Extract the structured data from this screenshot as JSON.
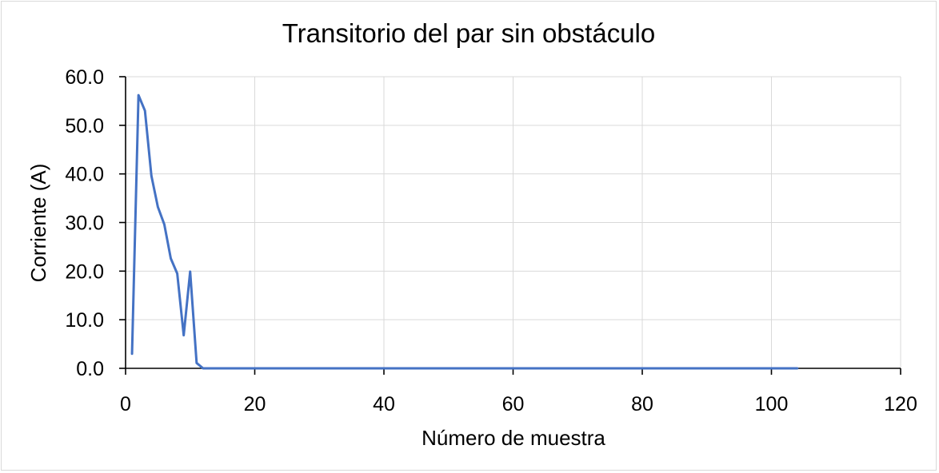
{
  "chart_data": {
    "type": "line",
    "title": "Transitorio del par sin obstáculo",
    "xlabel": "Número de muestra",
    "ylabel": "Corriente (A)",
    "xlim": [
      0,
      120
    ],
    "ylim": [
      0,
      60
    ],
    "xticks": [
      0,
      20,
      40,
      60,
      80,
      100,
      120
    ],
    "yticks": [
      0,
      10,
      20,
      30,
      40,
      50,
      60
    ],
    "xtick_labels": [
      "0",
      "20",
      "40",
      "60",
      "80",
      "100",
      "120"
    ],
    "ytick_labels": [
      "0.0",
      "10.0",
      "20.0",
      "30.0",
      "40.0",
      "50.0",
      "60.0"
    ],
    "grid": true,
    "legend": "none",
    "series": [
      {
        "color": "#4472C4",
        "x": [
          1,
          2,
          3,
          4,
          5,
          6,
          7,
          8,
          9,
          10,
          11,
          12,
          20,
          40,
          60,
          80,
          100,
          104
        ],
        "y": [
          3.0,
          56.2,
          53.0,
          39.6,
          33.2,
          29.6,
          22.6,
          19.5,
          6.8,
          19.9,
          1.1,
          0.0,
          0.0,
          0.0,
          0.0,
          0.0,
          0.0,
          0.0
        ]
      }
    ]
  }
}
